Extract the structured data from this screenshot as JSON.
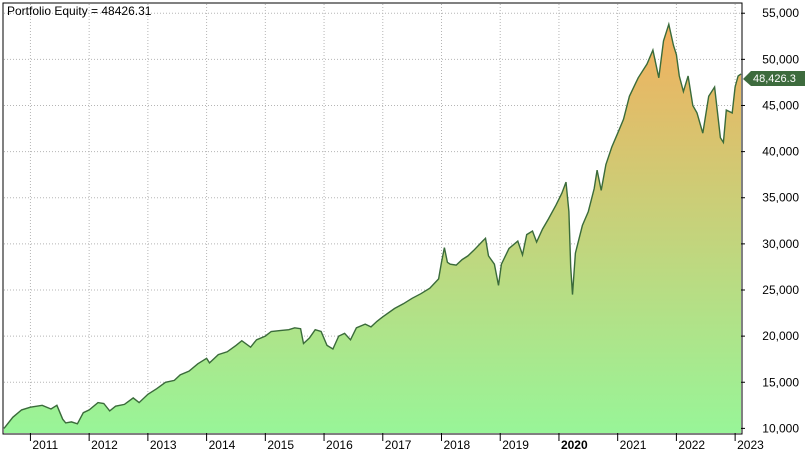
{
  "title": "Portfolio Equity = 48426.31",
  "last_value_label": "48,426.3",
  "colors": {
    "line": "#3a6b3a",
    "fill_bottom": "#98f598",
    "fill_top": "#f2b05e",
    "grid": "#b5b5b5",
    "badge": "#3d6b3d"
  },
  "chart_data": {
    "type": "area",
    "title": "Portfolio Equity = 48426.31",
    "xlabel": "",
    "ylabel": "",
    "xlim": [
      2010.55,
      2023.1
    ],
    "ylim": [
      9500,
      56000
    ],
    "grid": true,
    "y_axis_side": "right",
    "x_ticks": [
      {
        "label": "2011",
        "x": 2011,
        "bold": false
      },
      {
        "label": "2012",
        "x": 2012,
        "bold": false
      },
      {
        "label": "2013",
        "x": 2013,
        "bold": false
      },
      {
        "label": "2014",
        "x": 2014,
        "bold": false
      },
      {
        "label": "2015",
        "x": 2015,
        "bold": false
      },
      {
        "label": "2016",
        "x": 2016,
        "bold": false
      },
      {
        "label": "2017",
        "x": 2017,
        "bold": false
      },
      {
        "label": "2018",
        "x": 2018,
        "bold": false
      },
      {
        "label": "2019",
        "x": 2019,
        "bold": false
      },
      {
        "label": "2020",
        "x": 2020,
        "bold": true
      },
      {
        "label": "2021",
        "x": 2021,
        "bold": false
      },
      {
        "label": "2022",
        "x": 2022,
        "bold": false
      },
      {
        "label": "2023",
        "x": 2023,
        "bold": false
      }
    ],
    "y_ticks": [
      {
        "label": "10,000",
        "v": 10000
      },
      {
        "label": "15,000",
        "v": 15000
      },
      {
        "label": "20,000",
        "v": 20000
      },
      {
        "label": "25,000",
        "v": 25000
      },
      {
        "label": "30,000",
        "v": 30000
      },
      {
        "label": "35,000",
        "v": 35000
      },
      {
        "label": "40,000",
        "v": 40000
      },
      {
        "label": "45,000",
        "v": 45000
      },
      {
        "label": "50,000",
        "v": 50000
      },
      {
        "label": "55,000",
        "v": 55000
      }
    ],
    "series": [
      {
        "values": [
          [
            2010.55,
            10000
          ],
          [
            2010.7,
            11200
          ],
          [
            2010.85,
            12000
          ],
          [
            2011.0,
            12300
          ],
          [
            2011.2,
            12500
          ],
          [
            2011.35,
            12100
          ],
          [
            2011.45,
            12500
          ],
          [
            2011.55,
            11000
          ],
          [
            2011.6,
            10600
          ],
          [
            2011.7,
            10700
          ],
          [
            2011.8,
            10500
          ],
          [
            2011.9,
            11700
          ],
          [
            2012.0,
            12000
          ],
          [
            2012.15,
            12800
          ],
          [
            2012.25,
            12700
          ],
          [
            2012.35,
            11900
          ],
          [
            2012.45,
            12400
          ],
          [
            2012.6,
            12600
          ],
          [
            2012.75,
            13300
          ],
          [
            2012.85,
            12800
          ],
          [
            2013.0,
            13700
          ],
          [
            2013.15,
            14300
          ],
          [
            2013.3,
            15000
          ],
          [
            2013.45,
            15200
          ],
          [
            2013.55,
            15800
          ],
          [
            2013.7,
            16200
          ],
          [
            2013.85,
            17000
          ],
          [
            2014.0,
            17600
          ],
          [
            2014.05,
            17100
          ],
          [
            2014.2,
            18000
          ],
          [
            2014.35,
            18300
          ],
          [
            2014.5,
            19000
          ],
          [
            2014.6,
            19500
          ],
          [
            2014.75,
            18800
          ],
          [
            2014.85,
            19600
          ],
          [
            2015.0,
            20000
          ],
          [
            2015.1,
            20500
          ],
          [
            2015.25,
            20600
          ],
          [
            2015.4,
            20700
          ],
          [
            2015.5,
            20900
          ],
          [
            2015.6,
            20800
          ],
          [
            2015.65,
            19200
          ],
          [
            2015.75,
            19800
          ],
          [
            2015.85,
            20700
          ],
          [
            2015.95,
            20500
          ],
          [
            2016.05,
            19000
          ],
          [
            2016.15,
            18600
          ],
          [
            2016.25,
            20000
          ],
          [
            2016.35,
            20300
          ],
          [
            2016.45,
            19600
          ],
          [
            2016.55,
            20900
          ],
          [
            2016.7,
            21300
          ],
          [
            2016.8,
            21000
          ],
          [
            2016.9,
            21600
          ],
          [
            2017.0,
            22100
          ],
          [
            2017.2,
            23000
          ],
          [
            2017.35,
            23500
          ],
          [
            2017.5,
            24100
          ],
          [
            2017.65,
            24600
          ],
          [
            2017.8,
            25200
          ],
          [
            2017.95,
            26200
          ],
          [
            2018.0,
            28000
          ],
          [
            2018.05,
            29600
          ],
          [
            2018.1,
            28000
          ],
          [
            2018.15,
            27800
          ],
          [
            2018.25,
            27700
          ],
          [
            2018.35,
            28300
          ],
          [
            2018.45,
            28700
          ],
          [
            2018.55,
            29300
          ],
          [
            2018.7,
            30300
          ],
          [
            2018.75,
            30600
          ],
          [
            2018.8,
            28700
          ],
          [
            2018.9,
            27800
          ],
          [
            2018.97,
            25500
          ],
          [
            2019.02,
            27800
          ],
          [
            2019.15,
            29500
          ],
          [
            2019.3,
            30300
          ],
          [
            2019.38,
            28800
          ],
          [
            2019.45,
            31000
          ],
          [
            2019.55,
            31400
          ],
          [
            2019.62,
            30200
          ],
          [
            2019.72,
            31600
          ],
          [
            2019.82,
            32700
          ],
          [
            2019.95,
            34200
          ],
          [
            2020.05,
            35500
          ],
          [
            2020.12,
            36700
          ],
          [
            2020.17,
            33500
          ],
          [
            2020.2,
            27500
          ],
          [
            2020.23,
            24500
          ],
          [
            2020.28,
            29000
          ],
          [
            2020.4,
            32000
          ],
          [
            2020.5,
            33500
          ],
          [
            2020.6,
            36000
          ],
          [
            2020.65,
            38000
          ],
          [
            2020.72,
            35800
          ],
          [
            2020.8,
            38600
          ],
          [
            2020.9,
            40500
          ],
          [
            2021.0,
            42000
          ],
          [
            2021.1,
            43500
          ],
          [
            2021.2,
            46000
          ],
          [
            2021.35,
            48000
          ],
          [
            2021.5,
            49500
          ],
          [
            2021.6,
            51000
          ],
          [
            2021.7,
            48000
          ],
          [
            2021.78,
            52000
          ],
          [
            2021.87,
            53800
          ],
          [
            2021.95,
            51500
          ],
          [
            2022.0,
            50500
          ],
          [
            2022.05,
            48200
          ],
          [
            2022.12,
            46500
          ],
          [
            2022.2,
            48200
          ],
          [
            2022.28,
            45000
          ],
          [
            2022.35,
            44200
          ],
          [
            2022.45,
            42000
          ],
          [
            2022.55,
            46000
          ],
          [
            2022.65,
            47000
          ],
          [
            2022.75,
            41500
          ],
          [
            2022.8,
            41000
          ],
          [
            2022.85,
            44500
          ],
          [
            2022.95,
            44200
          ],
          [
            2023.0,
            47000
          ],
          [
            2023.05,
            48200
          ],
          [
            2023.1,
            48426
          ]
        ]
      }
    ]
  }
}
